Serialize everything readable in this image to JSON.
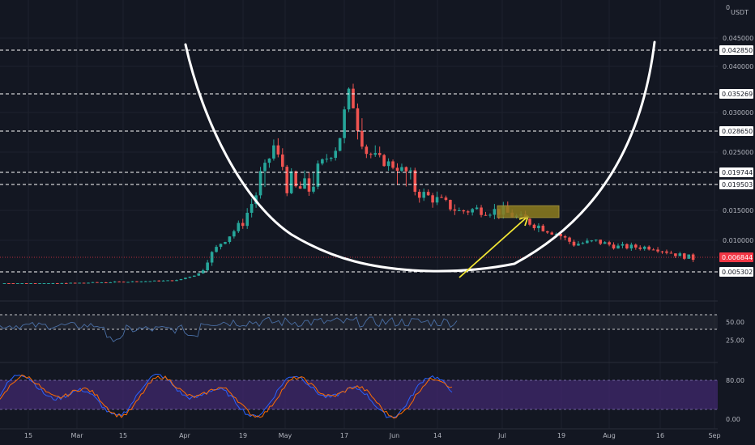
{
  "chart_data": [
    {
      "type": "candlestick",
      "pane": "price",
      "currency": "USDT",
      "header_zero": "0",
      "price_ticks": [
        {
          "v": 0.045,
          "label": "0.045000"
        },
        {
          "v": 0.04,
          "label": "0.040000"
        },
        {
          "v": 0.03,
          "label": "0.030000"
        },
        {
          "v": 0.025,
          "label": "0.025000"
        },
        {
          "v": 0.015,
          "label": "0.015000"
        },
        {
          "v": 0.01,
          "label": "0.010000"
        }
      ],
      "levels": [
        {
          "v": 0.04285,
          "label": "0.042850"
        },
        {
          "v": 0.035269,
          "label": "0.035269"
        },
        {
          "v": 0.02865,
          "label": "0.028650"
        },
        {
          "v": 0.019744,
          "label": "0.019744"
        },
        {
          "v": 0.019503,
          "label": "0.019503"
        },
        {
          "v": 0.005302,
          "label": "0.005302"
        }
      ],
      "current_price": {
        "v": 0.006844,
        "label": "0.006844",
        "color": "#f23645"
      },
      "ylim": [
        0.002,
        0.05
      ],
      "x_ticks": [
        "15",
        "Mar",
        "15",
        "Apr",
        "19",
        "May",
        "17",
        "Jun",
        "14",
        "Jul",
        "19",
        "Aug",
        "16",
        "Sep"
      ],
      "close_path": [
        {
          "d": 0,
          "c": 0.0015
        },
        {
          "d": 40,
          "c": 0.0028
        },
        {
          "d": 45,
          "c": 0.0048
        },
        {
          "d": 50,
          "c": 0.0095
        },
        {
          "d": 55,
          "c": 0.013
        },
        {
          "d": 60,
          "c": 0.021
        },
        {
          "d": 62,
          "c": 0.026
        },
        {
          "d": 65,
          "c": 0.019
        },
        {
          "d": 70,
          "c": 0.0185
        },
        {
          "d": 72,
          "c": 0.021
        },
        {
          "d": 76,
          "c": 0.026
        },
        {
          "d": 78,
          "c": 0.03
        },
        {
          "d": 79,
          "c": 0.0345
        },
        {
          "d": 81,
          "c": 0.03
        },
        {
          "d": 83,
          "c": 0.025
        },
        {
          "d": 86,
          "c": 0.023
        },
        {
          "d": 90,
          "c": 0.021
        },
        {
          "d": 95,
          "c": 0.018
        },
        {
          "d": 100,
          "c": 0.0165
        },
        {
          "d": 104,
          "c": 0.0148
        },
        {
          "d": 108,
          "c": 0.0152
        },
        {
          "d": 114,
          "c": 0.0148
        },
        {
          "d": 120,
          "c": 0.013
        },
        {
          "d": 126,
          "c": 0.0112
        },
        {
          "d": 130,
          "c": 0.0093
        },
        {
          "d": 135,
          "c": 0.0098
        },
        {
          "d": 140,
          "c": 0.0088
        },
        {
          "d": 148,
          "c": 0.0087
        },
        {
          "d": 153,
          "c": 0.0074
        },
        {
          "d": 157,
          "c": 0.0068
        }
      ],
      "series_colors": {
        "up": "#26a69a",
        "down": "#ef5350"
      },
      "cup_color": "#ffffff",
      "arrow_color": "#f2e635",
      "target_box": {
        "low": 0.0138,
        "high": 0.0158,
        "color": "#8d7d1f"
      },
      "level_line_color": "#ffffff"
    },
    {
      "type": "line",
      "pane": "rsi",
      "ticks": [
        {
          "v": 50,
          "label": "50.00"
        },
        {
          "v": 25,
          "label": "25.00"
        }
      ],
      "band": [
        40,
        60
      ],
      "color": "#4a6fa5",
      "band_color": "#2a2e39"
    },
    {
      "type": "line",
      "pane": "stoch_rsi",
      "ticks": [
        {
          "v": 80,
          "label": "80.00"
        },
        {
          "v": 0,
          "label": "0.00"
        }
      ],
      "band": [
        20,
        80
      ],
      "band_color": "#3d2769",
      "series_colors": {
        "k": "#2962ff",
        "d": "#ff6d00"
      }
    }
  ]
}
